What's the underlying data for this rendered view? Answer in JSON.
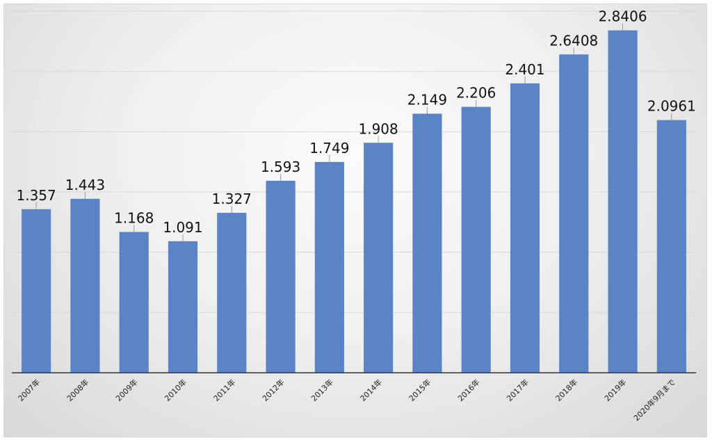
{
  "chart_data": {
    "type": "bar",
    "categories": [
      "2007年",
      "2008年",
      "2009年",
      "2010年",
      "2011年",
      "2012年",
      "2013年",
      "2014年",
      "2015年",
      "2016年",
      "2017年",
      "2018年",
      "2019年",
      "2020年9月まで"
    ],
    "data_labels": [
      "1.357",
      "1.443",
      "1.168",
      "1.091",
      "1.327",
      "1.593",
      "1.749",
      "1.908",
      "2.149",
      "2.206",
      "2.401",
      "2.6408",
      "2.8406",
      "2.0961"
    ],
    "values": [
      1.357,
      1.443,
      1.168,
      1.091,
      1.327,
      1.593,
      1.749,
      1.908,
      2.149,
      2.206,
      2.401,
      2.6408,
      2.8406,
      2.0961
    ],
    "ylim": [
      0,
      3
    ],
    "ytick_step": 0.5,
    "grid": true,
    "bar_color": "#5b84c7"
  }
}
